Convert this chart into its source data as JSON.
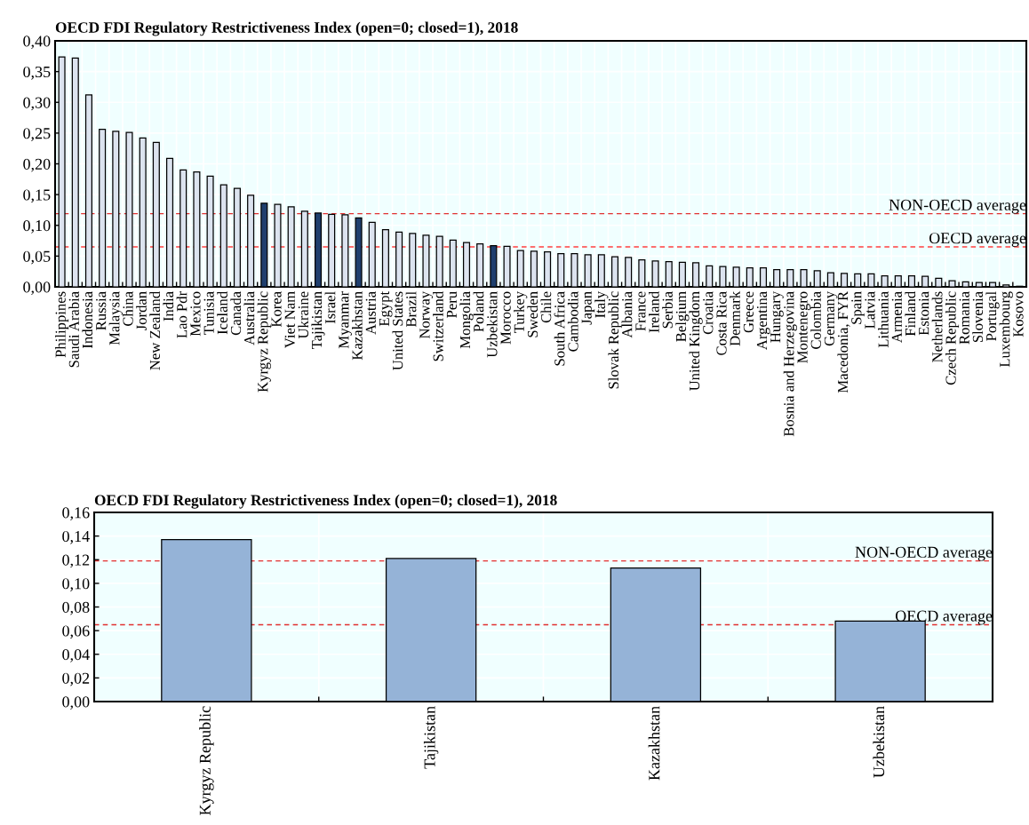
{
  "chart_data": [
    {
      "type": "bar",
      "title": "OECD FDI Regulatory Restrictiveness Index (open=0; closed=1), 2018",
      "categories": [
        "Philippines",
        "Saudi Arabia",
        "Indonesia",
        "Russia",
        "Malaysia",
        "China",
        "Jordan",
        "New Zealand",
        "India",
        "Lao Pdr",
        "Mexico",
        "Tunisia",
        "Iceland",
        "Canada",
        "Australia",
        "Kyrgyz Republic",
        "Korea",
        "Viet Nam",
        "Ukraine",
        "Tajikistan",
        "Israel",
        "Myanmar",
        "Kazakhstan",
        "Austria",
        "Egypt",
        "United States",
        "Brazil",
        "Norway",
        "Switzerland",
        "Peru",
        "Mongolia",
        "Poland",
        "Uzbekistan",
        "Morocco",
        "Turkey",
        "Sweden",
        "Chile",
        "South Africa",
        "Cambodia",
        "Japan",
        "Italy",
        "Slovak Republic",
        "Albania",
        "France",
        "Ireland",
        "Serbia",
        "Belgium",
        "United Kingdom",
        "Croatia",
        "Costa Rica",
        "Denmark",
        "Greece",
        "Argentina",
        "Hungary",
        "Bosnia and Herzegovina",
        "Montenegro",
        "Colombia",
        "Germany",
        "Macedonia, FYR",
        "Spain",
        "Latvia",
        "Lithuania",
        "Armenia",
        "Finland",
        "Estonia",
        "Netherlands",
        "Czech Republic",
        "Romania",
        "Slovenia",
        "Portugal",
        "Luxembourg",
        "Kosovo"
      ],
      "values": [
        0.374,
        0.372,
        0.312,
        0.256,
        0.253,
        0.251,
        0.242,
        0.235,
        0.209,
        0.19,
        0.187,
        0.18,
        0.166,
        0.16,
        0.149,
        0.136,
        0.134,
        0.13,
        0.123,
        0.12,
        0.118,
        0.117,
        0.112,
        0.105,
        0.093,
        0.089,
        0.087,
        0.084,
        0.082,
        0.076,
        0.072,
        0.07,
        0.067,
        0.066,
        0.059,
        0.058,
        0.057,
        0.054,
        0.054,
        0.052,
        0.052,
        0.049,
        0.048,
        0.044,
        0.042,
        0.041,
        0.04,
        0.039,
        0.034,
        0.033,
        0.032,
        0.031,
        0.031,
        0.028,
        0.028,
        0.028,
        0.026,
        0.023,
        0.022,
        0.021,
        0.021,
        0.018,
        0.018,
        0.018,
        0.017,
        0.014,
        0.01,
        0.008,
        0.007,
        0.007,
        0.003,
        0.001
      ],
      "colors": [
        "#dce3ef",
        "#dce3ef",
        "#dce3ef",
        "#dce3ef",
        "#dce3ef",
        "#dce3ef",
        "#dce3ef",
        "#dce3ef",
        "#dce3ef",
        "#dce3ef",
        "#dce3ef",
        "#dce3ef",
        "#dce3ef",
        "#dce3ef",
        "#dce3ef",
        "#1f3f6e",
        "#dce3ef",
        "#dce3ef",
        "#dce3ef",
        "#1f3f6e",
        "#dce3ef",
        "#dce3ef",
        "#1f3f6e",
        "#dce3ef",
        "#dce3ef",
        "#dce3ef",
        "#dce3ef",
        "#dce3ef",
        "#dce3ef",
        "#dce3ef",
        "#dce3ef",
        "#dce3ef",
        "#1f3f6e",
        "#dce3ef",
        "#dce3ef",
        "#dce3ef",
        "#dce3ef",
        "#dce3ef",
        "#dce3ef",
        "#dce3ef",
        "#dce3ef",
        "#dce3ef",
        "#dce3ef",
        "#dce3ef",
        "#dce3ef",
        "#dce3ef",
        "#dce3ef",
        "#dce3ef",
        "#dce3ef",
        "#dce3ef",
        "#dce3ef",
        "#dce3ef",
        "#dce3ef",
        "#dce3ef",
        "#dce3ef",
        "#dce3ef",
        "#dce3ef",
        "#dce3ef",
        "#dce3ef",
        "#dce3ef",
        "#dce3ef",
        "#dce3ef",
        "#dce3ef",
        "#dce3ef",
        "#dce3ef",
        "#dce3ef",
        "#dce3ef",
        "#dce3ef",
        "#dce3ef",
        "#dce3ef",
        "#dce3ef",
        "#dce3ef"
      ],
      "ylim": [
        0,
        0.4
      ],
      "yticks": [
        {
          "value": 0,
          "label": "0,00"
        },
        {
          "value": 0.05,
          "label": "0,05"
        },
        {
          "value": 0.1,
          "label": "0,10"
        },
        {
          "value": 0.15,
          "label": "0,15"
        },
        {
          "value": 0.2,
          "label": "0,20"
        },
        {
          "value": 0.25,
          "label": "0,25"
        },
        {
          "value": 0.3,
          "label": "0,30"
        },
        {
          "value": 0.35,
          "label": "0,35"
        },
        {
          "value": 0.4,
          "label": "0,40"
        }
      ],
      "grid": true,
      "ref_lines": [
        {
          "axis": "y",
          "value": 0.119,
          "label": "NON-OECD average",
          "color": "#e03030",
          "line_style": "dashed"
        },
        {
          "axis": "y",
          "value": 0.065,
          "label": "OECD average",
          "color": "#ff4040",
          "line_style": "dashed"
        }
      ]
    },
    {
      "type": "bar",
      "title": "OECD FDI Regulatory Restrictiveness Index (open=0; closed=1), 2018",
      "categories": [
        "Kyrgyz Republic",
        "Tajikistan",
        "Kazakhstan",
        "Uzbekistan"
      ],
      "values": [
        0.137,
        0.121,
        0.113,
        0.068
      ],
      "colors": [
        "#95b3d7",
        "#95b3d7",
        "#95b3d7",
        "#95b3d7"
      ],
      "ylim": [
        0,
        0.16
      ],
      "yticks": [
        {
          "value": 0,
          "label": "0,00"
        },
        {
          "value": 0.02,
          "label": "0,02"
        },
        {
          "value": 0.04,
          "label": "0,04"
        },
        {
          "value": 0.06,
          "label": "0,06"
        },
        {
          "value": 0.08,
          "label": "0,08"
        },
        {
          "value": 0.1,
          "label": "0,10"
        },
        {
          "value": 0.12,
          "label": "0,12"
        },
        {
          "value": 0.14,
          "label": "0,14"
        },
        {
          "value": 0.16,
          "label": "0,16"
        }
      ],
      "grid": true,
      "ref_lines": [
        {
          "axis": "y",
          "value": 0.119,
          "label": "NON-OECD average",
          "color": "#e03030",
          "line_style": "dashed"
        },
        {
          "axis": "y",
          "value": 0.065,
          "label": "OECD average",
          "color": "#e03030",
          "line_style": "dashed"
        }
      ]
    }
  ]
}
